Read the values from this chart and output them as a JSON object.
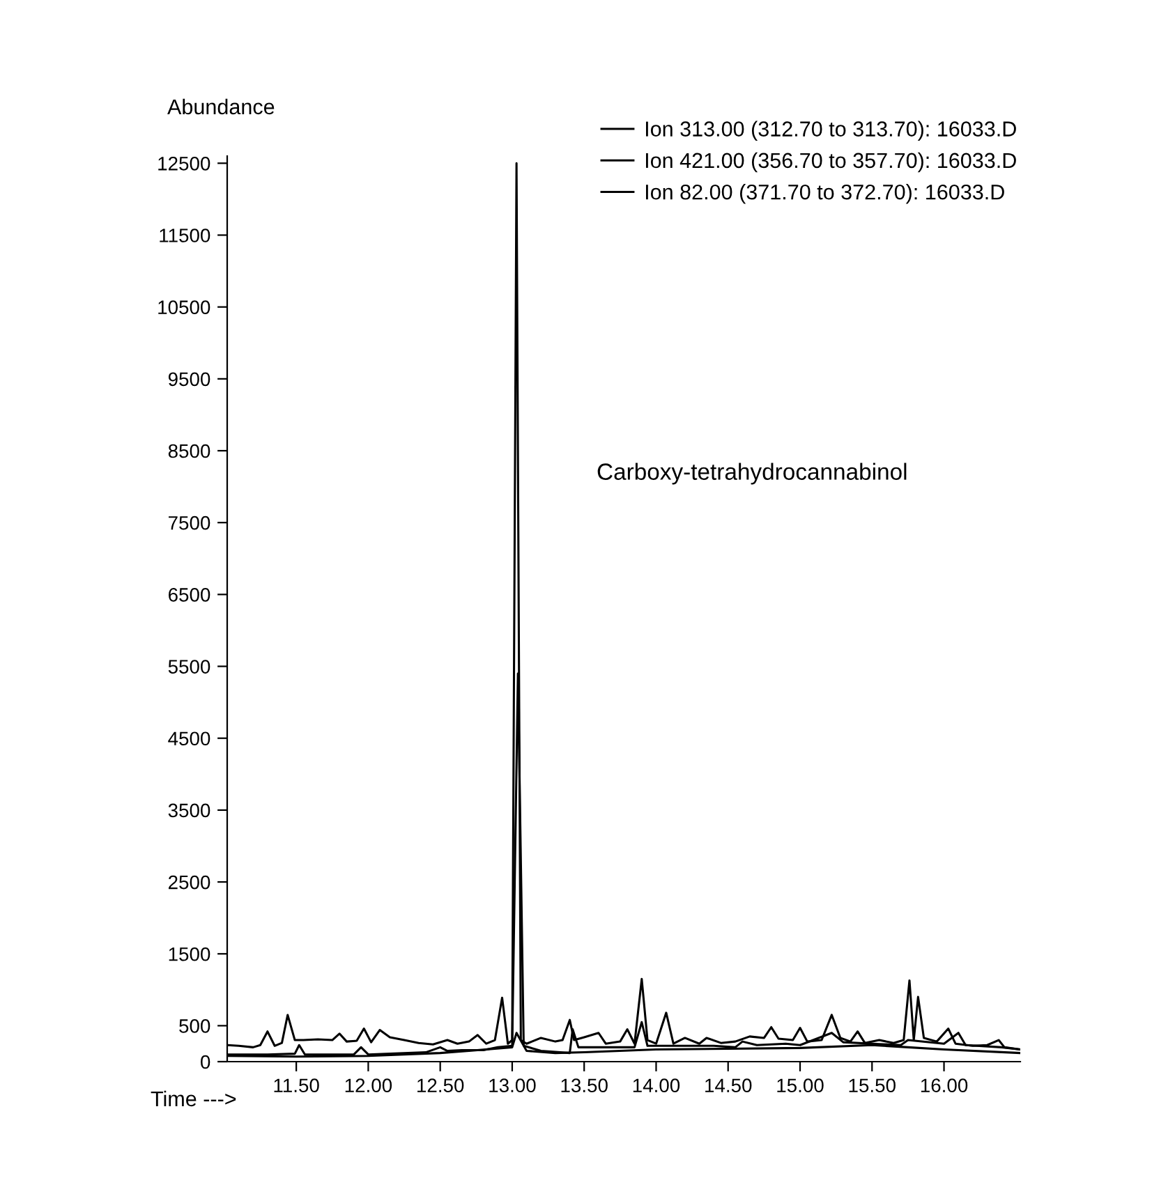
{
  "chart_data": {
    "type": "line",
    "xlabel": "Time --->",
    "ylabel": "Abundance",
    "annotations": [
      "Carboxy-tetrahydrocannabinol"
    ],
    "xlim": [
      11.02,
      16.53
    ],
    "ylim": [
      0,
      12600
    ],
    "xticks": [
      {
        "value": 11.5,
        "label": "11.50"
      },
      {
        "value": 12.0,
        "label": "12.00"
      },
      {
        "value": 12.5,
        "label": "12.50"
      },
      {
        "value": 13.0,
        "label": "13.00"
      },
      {
        "value": 13.5,
        "label": "13.50"
      },
      {
        "value": 14.0,
        "label": "14.00"
      },
      {
        "value": 14.5,
        "label": "14.50"
      },
      {
        "value": 15.0,
        "label": "15.00"
      },
      {
        "value": 15.5,
        "label": "15.50"
      },
      {
        "value": 16.0,
        "label": "16.00"
      }
    ],
    "yticks": [
      0,
      500,
      1500,
      2500,
      3500,
      4500,
      5500,
      6500,
      7500,
      8500,
      9500,
      10500,
      11500,
      12500
    ],
    "grid": false,
    "legend": "top right",
    "marker": "none",
    "line_style": "solid",
    "series": [
      {
        "name": "Ion 313.00 (312.70 to 313.70): 16033.D",
        "color": "#000000",
        "x": [
          11.02,
          11.1,
          11.2,
          11.25,
          11.3,
          11.35,
          11.4,
          11.44,
          11.49,
          11.55,
          11.65,
          11.75,
          11.8,
          11.85,
          11.92,
          11.97,
          12.02,
          12.08,
          12.15,
          12.25,
          12.35,
          12.45,
          12.55,
          12.62,
          12.7,
          12.76,
          12.82,
          12.88,
          12.93,
          12.97,
          13.0,
          13.03,
          13.06,
          13.1,
          13.2,
          13.3,
          13.35,
          13.4,
          13.43,
          13.5,
          13.6,
          13.65,
          13.75,
          13.8,
          13.85,
          13.9,
          13.94,
          14.0,
          14.07,
          14.12,
          14.2,
          14.3,
          14.35,
          14.45,
          14.55,
          14.65,
          14.75,
          14.8,
          14.85,
          14.95,
          15.0,
          15.05,
          15.15,
          15.22,
          15.28,
          15.35,
          15.4,
          15.45,
          15.55,
          15.65,
          15.72,
          15.76,
          15.79,
          15.82,
          15.86,
          15.95,
          16.03,
          16.08,
          16.2,
          16.3,
          16.38,
          16.42,
          16.53
        ],
        "values": [
          230,
          220,
          200,
          230,
          420,
          220,
          260,
          650,
          300,
          300,
          310,
          300,
          390,
          280,
          290,
          460,
          270,
          440,
          340,
          300,
          260,
          240,
          300,
          250,
          280,
          370,
          250,
          300,
          890,
          250,
          300,
          12500,
          300,
          250,
          330,
          280,
          300,
          580,
          300,
          340,
          400,
          250,
          280,
          450,
          250,
          1150,
          300,
          250,
          680,
          250,
          330,
          250,
          330,
          260,
          280,
          350,
          330,
          480,
          320,
          300,
          470,
          280,
          300,
          650,
          330,
          280,
          420,
          260,
          300,
          260,
          300,
          1130,
          300,
          900,
          330,
          280,
          460,
          250,
          220,
          230,
          300,
          200,
          170
        ]
      },
      {
        "name": "Ion 421.00 (356.70 to 357.70): 16033.D",
        "color": "#000000",
        "x": [
          11.02,
          11.3,
          11.49,
          11.52,
          11.56,
          11.9,
          11.95,
          12.0,
          12.4,
          12.5,
          12.55,
          12.65,
          12.8,
          12.9,
          13.0,
          13.04,
          13.08,
          13.2,
          13.4,
          13.42,
          13.46,
          13.6,
          13.7,
          13.85,
          13.9,
          13.94,
          14.1,
          14.4,
          14.55,
          14.6,
          14.7,
          14.9,
          15.0,
          15.22,
          15.3,
          15.5,
          15.7,
          15.75,
          16.0,
          16.1,
          16.15,
          16.4,
          16.53
        ],
        "values": [
          100,
          100,
          110,
          230,
          100,
          100,
          200,
          100,
          130,
          200,
          150,
          160,
          160,
          200,
          220,
          5400,
          220,
          150,
          120,
          450,
          200,
          200,
          200,
          200,
          550,
          220,
          220,
          220,
          200,
          280,
          230,
          250,
          230,
          400,
          270,
          250,
          230,
          300,
          250,
          400,
          230,
          200,
          170
        ]
      },
      {
        "name": "Ion 82.00 (371.70 to 372.70): 16033.D",
        "color": "#000000",
        "x": [
          11.02,
          11.5,
          12.0,
          12.5,
          12.7,
          13.0,
          13.03,
          13.1,
          13.3,
          13.5,
          14.0,
          14.5,
          15.0,
          15.5,
          15.75,
          16.0,
          16.53
        ],
        "values": [
          80,
          70,
          80,
          120,
          150,
          200,
          400,
          150,
          120,
          130,
          170,
          180,
          190,
          230,
          200,
          170,
          120
        ]
      }
    ]
  }
}
